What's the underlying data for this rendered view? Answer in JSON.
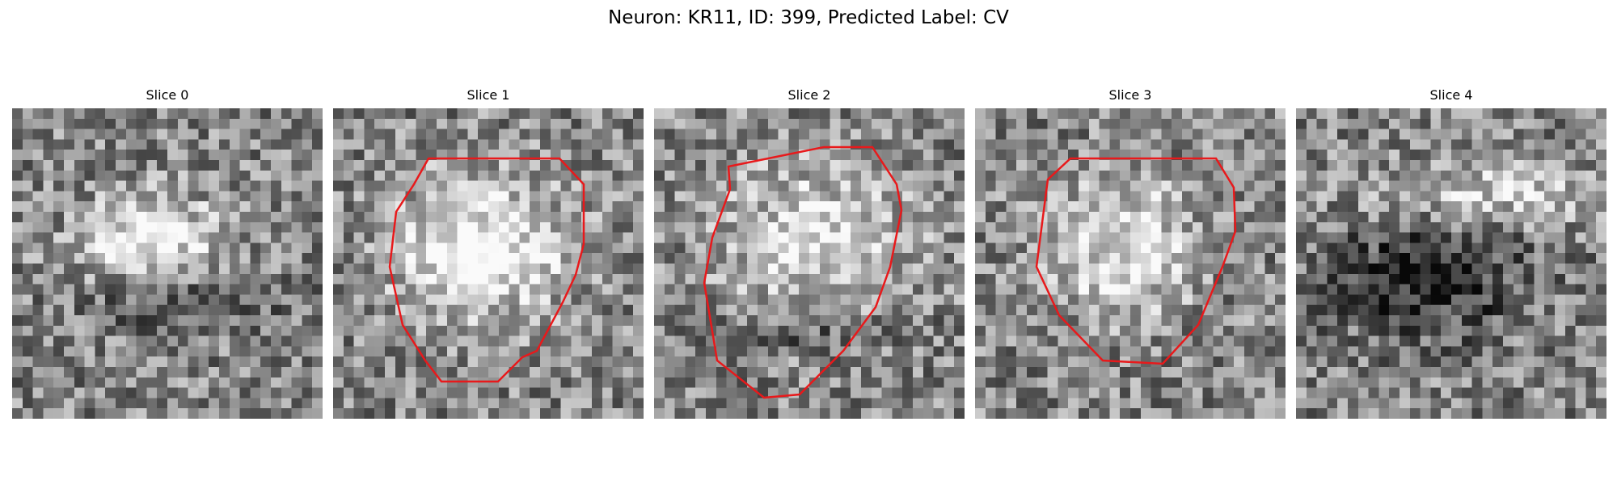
{
  "figure": {
    "title": "Neuron: KR11, ID: 399, Predicted Label: CV"
  },
  "colors": {
    "contour": "#e8191b",
    "background": "#ffffff",
    "colormap": "grayscale"
  },
  "panels": [
    {
      "title": "Slice 0",
      "has_contour": false
    },
    {
      "title": "Slice 1",
      "has_contour": true
    },
    {
      "title": "Slice 2",
      "has_contour": true
    },
    {
      "title": "Slice 3",
      "has_contour": true
    },
    {
      "title": "Slice 4",
      "has_contour": false
    }
  ]
}
